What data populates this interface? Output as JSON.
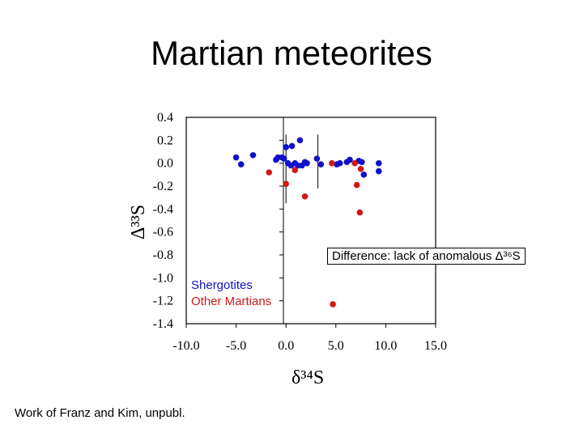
{
  "page_title": "Martian meteorites",
  "annotation": "Difference:  lack of anomalous Δ³⁶S",
  "credit": "Work of Franz and Kim, unpubl.",
  "chart_data": {
    "type": "scatter",
    "title": "",
    "xlabel": "δ³⁴S",
    "ylabel": "Δ³³S",
    "xlim": [
      -10,
      15
    ],
    "ylim": [
      -1.4,
      0.4
    ],
    "xticks": [
      "-10.0",
      "-5.0",
      "0.0",
      "5.0",
      "10.0",
      "15.0"
    ],
    "yticks": [
      "0.4",
      "0.2",
      "0.0",
      "-0.2",
      "-0.4",
      "-0.6",
      "-0.8",
      "-1.0",
      "-1.2",
      "-1.4"
    ],
    "legend": [
      "Shergotites",
      "Other Martians"
    ],
    "series": [
      {
        "name": "Shergotites",
        "color": "#1010c8",
        "points": [
          [
            -5.0,
            0.05
          ],
          [
            -4.5,
            -0.01
          ],
          [
            -3.3,
            0.07
          ],
          [
            -1.0,
            0.03
          ],
          [
            -0.8,
            0.05
          ],
          [
            -0.4,
            0.05
          ],
          [
            -0.2,
            0.04
          ],
          [
            0.0,
            0.14
          ],
          [
            0.2,
            0.0
          ],
          [
            0.5,
            -0.02
          ],
          [
            0.6,
            0.15
          ],
          [
            0.9,
            0.0
          ],
          [
            1.2,
            -0.02
          ],
          [
            1.4,
            0.2
          ],
          [
            1.6,
            -0.02
          ],
          [
            1.9,
            0.01
          ],
          [
            2.1,
            0.0
          ],
          [
            3.1,
            0.04
          ],
          [
            3.5,
            -0.01
          ],
          [
            5.1,
            -0.01
          ],
          [
            5.4,
            0.0
          ],
          [
            6.1,
            0.01
          ],
          [
            6.4,
            0.03
          ],
          [
            7.3,
            0.02
          ],
          [
            7.6,
            0.01
          ],
          [
            7.8,
            -0.1
          ],
          [
            9.3,
            0.0
          ],
          [
            9.3,
            -0.07
          ]
        ]
      },
      {
        "name": "Other Martians",
        "color": "#d01818",
        "points": [
          [
            -1.7,
            -0.08
          ],
          [
            0.0,
            -0.18
          ],
          [
            0.9,
            -0.06
          ],
          [
            1.9,
            -0.29
          ],
          [
            4.6,
            0.0
          ],
          [
            6.9,
            0.0
          ],
          [
            7.1,
            -0.19
          ],
          [
            7.5,
            -0.05
          ],
          [
            7.4,
            -0.43
          ],
          [
            4.7,
            -1.23
          ]
        ]
      }
    ],
    "error_bars": [
      {
        "x": 0.0,
        "y_range": [
          -0.35,
          0.25
        ]
      },
      {
        "x": 3.2,
        "y_range": [
          -0.22,
          0.25
        ]
      }
    ]
  }
}
